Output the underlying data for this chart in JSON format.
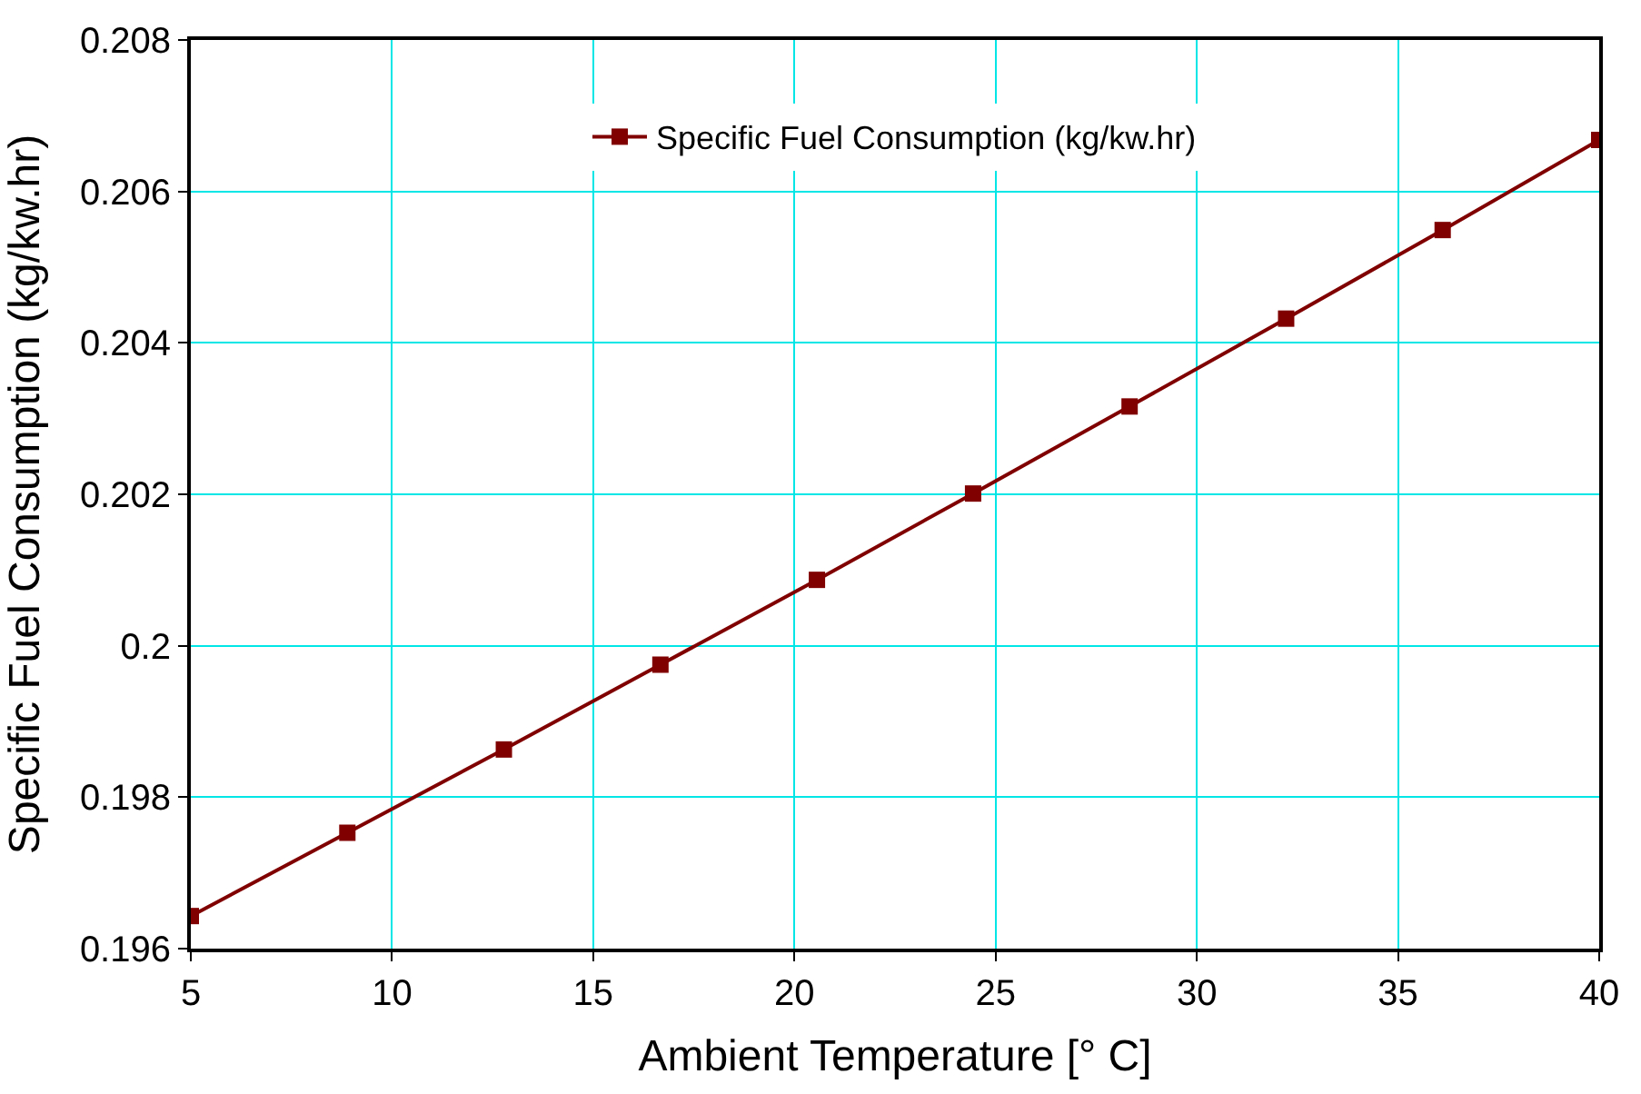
{
  "chart_data": {
    "type": "line",
    "xlabel": "Ambient Temperature [° C]",
    "ylabel": "Specific Fuel Consumption (kg/kw.hr)",
    "x": [
      5,
      8.89,
      12.78,
      16.67,
      20.56,
      24.44,
      28.33,
      32.22,
      36.11,
      40
    ],
    "series": [
      {
        "name": "Specific Fuel Consumption (kg/kw.hr)",
        "color": "#800000",
        "values": [
          0.19643,
          0.19753,
          0.19863,
          0.19975,
          0.20087,
          0.20201,
          0.20316,
          0.20432,
          0.20549,
          0.20668
        ]
      }
    ],
    "xlim": [
      5,
      40
    ],
    "xticks": [
      5,
      10,
      15,
      20,
      25,
      30,
      35,
      40
    ],
    "ylim": [
      0.196,
      0.208
    ],
    "yticks": [
      0.196,
      0.198,
      {
        "value": 0.2,
        "label": "0.2"
      },
      0.202,
      0.204,
      0.206,
      0.208
    ],
    "grid": true,
    "legend": "top",
    "marker": "square",
    "line_style": "solid"
  }
}
